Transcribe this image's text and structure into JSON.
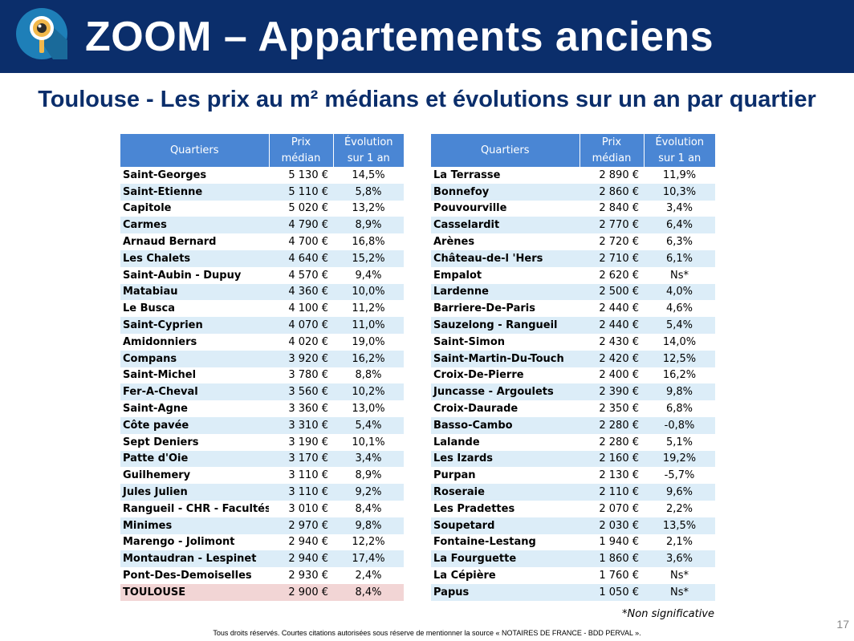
{
  "header": {
    "title": "ZOOM – Appartements anciens",
    "logo_icon": "magnifier-eye-icon",
    "background_color": "#0b2e6b"
  },
  "subtitle": "Toulouse - Les prix au m² médians et évolutions sur un an par quartier",
  "columns": {
    "quartiers": "Quartiers",
    "prix_line1": "Prix",
    "prix_line2": "médian",
    "evolution_line1": "Évolution",
    "evolution_line2": "sur 1 an"
  },
  "left_table": [
    {
      "quartier": "Saint-Georges",
      "prix": "5 130 €",
      "evolution": "14,5%"
    },
    {
      "quartier": "Saint-Etienne",
      "prix": "5 110 €",
      "evolution": "5,8%"
    },
    {
      "quartier": "Capitole",
      "prix": "5 020 €",
      "evolution": "13,2%"
    },
    {
      "quartier": "Carmes",
      "prix": "4 790 €",
      "evolution": "8,9%"
    },
    {
      "quartier": "Arnaud Bernard",
      "prix": "4 700 €",
      "evolution": "16,8%"
    },
    {
      "quartier": "Les Chalets",
      "prix": "4 640 €",
      "evolution": "15,2%"
    },
    {
      "quartier": "Saint-Aubin - Dupuy",
      "prix": "4 570 €",
      "evolution": "9,4%"
    },
    {
      "quartier": "Matabiau",
      "prix": "4 360 €",
      "evolution": "10,0%"
    },
    {
      "quartier": "Le Busca",
      "prix": "4 100 €",
      "evolution": "11,2%"
    },
    {
      "quartier": "Saint-Cyprien",
      "prix": "4 070 €",
      "evolution": "11,0%"
    },
    {
      "quartier": "Amidonniers",
      "prix": "4 020 €",
      "evolution": "19,0%"
    },
    {
      "quartier": "Compans",
      "prix": "3 920 €",
      "evolution": "16,2%"
    },
    {
      "quartier": "Saint-Michel",
      "prix": "3 780 €",
      "evolution": "8,8%"
    },
    {
      "quartier": "Fer-A-Cheval",
      "prix": "3 560 €",
      "evolution": "10,2%"
    },
    {
      "quartier": "Saint-Agne",
      "prix": "3 360 €",
      "evolution": "13,0%"
    },
    {
      "quartier": "Côte pavée",
      "prix": "3 310 €",
      "evolution": "5,4%"
    },
    {
      "quartier": "Sept Deniers",
      "prix": "3 190 €",
      "evolution": "10,1%"
    },
    {
      "quartier": "Patte d'Oie",
      "prix": "3 170 €",
      "evolution": "3,4%"
    },
    {
      "quartier": "Guilhemery",
      "prix": "3 110 €",
      "evolution": "8,9%"
    },
    {
      "quartier": "Jules Julien",
      "prix": "3 110 €",
      "evolution": "9,2%"
    },
    {
      "quartier": "Rangueil - CHR - Facultés",
      "prix": "3 010 €",
      "evolution": "8,4%"
    },
    {
      "quartier": "Minimes",
      "prix": "2 970 €",
      "evolution": "9,8%"
    },
    {
      "quartier": "Marengo - Jolimont",
      "prix": "2 940 €",
      "evolution": "12,2%"
    },
    {
      "quartier": "Montaudran - Lespinet",
      "prix": "2 940 €",
      "evolution": "17,4%"
    },
    {
      "quartier": "Pont-Des-Demoiselles",
      "prix": "2 930 €",
      "evolution": "2,4%"
    },
    {
      "quartier": "TOULOUSE",
      "prix": "2 900 €",
      "evolution": "8,4%"
    }
  ],
  "right_table": [
    {
      "quartier": "La Terrasse",
      "prix": "2 890 €",
      "evolution": "11,9%"
    },
    {
      "quartier": "Bonnefoy",
      "prix": "2 860 €",
      "evolution": "10,3%"
    },
    {
      "quartier": "Pouvourville",
      "prix": "2 840 €",
      "evolution": "3,4%"
    },
    {
      "quartier": "Casselardit",
      "prix": "2 770 €",
      "evolution": "6,4%"
    },
    {
      "quartier": "Arènes",
      "prix": "2 720 €",
      "evolution": "6,3%"
    },
    {
      "quartier": "Château-de-l 'Hers",
      "prix": "2 710 €",
      "evolution": "6,1%"
    },
    {
      "quartier": "Empalot",
      "prix": "2 620 €",
      "evolution": "Ns*"
    },
    {
      "quartier": "Lardenne",
      "prix": "2 500 €",
      "evolution": "4,0%"
    },
    {
      "quartier": "Barriere-De-Paris",
      "prix": "2 440 €",
      "evolution": "4,6%"
    },
    {
      "quartier": "Sauzelong - Rangueil",
      "prix": "2 440 €",
      "evolution": "5,4%"
    },
    {
      "quartier": "Saint-Simon",
      "prix": "2 430 €",
      "evolution": "14,0%"
    },
    {
      "quartier": "Saint-Martin-Du-Touch",
      "prix": "2 420 €",
      "evolution": "12,5%"
    },
    {
      "quartier": "Croix-De-Pierre",
      "prix": "2 400 €",
      "evolution": "16,2%"
    },
    {
      "quartier": "Juncasse - Argoulets",
      "prix": "2 390 €",
      "evolution": "9,8%"
    },
    {
      "quartier": "Croix-Daurade",
      "prix": "2 350 €",
      "evolution": "6,8%"
    },
    {
      "quartier": "Basso-Cambo",
      "prix": "2 280 €",
      "evolution": "-0,8%"
    },
    {
      "quartier": "Lalande",
      "prix": "2 280 €",
      "evolution": "5,1%"
    },
    {
      "quartier": "Les Izards",
      "prix": "2 160 €",
      "evolution": "19,2%"
    },
    {
      "quartier": "Purpan",
      "prix": "2 130 €",
      "evolution": "-5,7%"
    },
    {
      "quartier": "Roseraie",
      "prix": "2 110 €",
      "evolution": "9,6%"
    },
    {
      "quartier": "Les Pradettes",
      "prix": "2 070 €",
      "evolution": "2,2%"
    },
    {
      "quartier": "Soupetard",
      "prix": "2 030 €",
      "evolution": "13,5%"
    },
    {
      "quartier": "Fontaine-Lestang",
      "prix": "1 940 €",
      "evolution": "2,1%"
    },
    {
      "quartier": "La Fourguette",
      "prix": "1 860 €",
      "evolution": "3,6%"
    },
    {
      "quartier": "La Cépière",
      "prix": "1 760 €",
      "evolution": "Ns*"
    },
    {
      "quartier": "Papus",
      "prix": "1 050 €",
      "evolution": "Ns*"
    }
  ],
  "note": "*Non significative",
  "page_number": "17",
  "footer": "Tous droits réservés. Courtes citations autorisées sous réserve de mentionner la source « NOTAIRES DE FRANCE - BDD PERVAL »."
}
